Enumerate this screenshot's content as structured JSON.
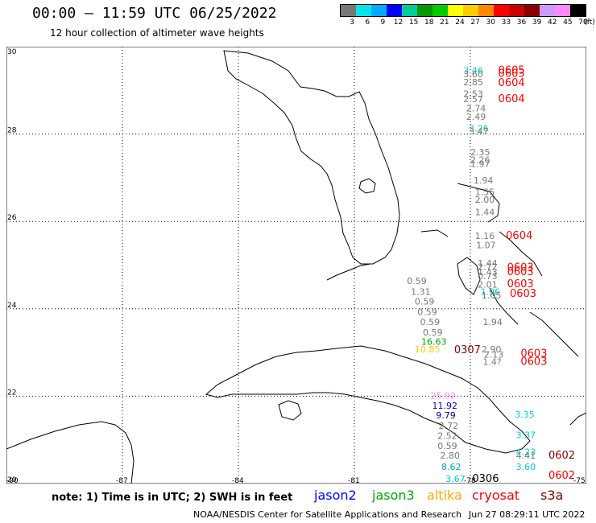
{
  "header": {
    "title": "00:00 – 11:59 UTC 06/25/2022",
    "subtitle": "12 hour collection of altimeter wave heights"
  },
  "scale": {
    "unit": "(ft)",
    "ticks": [
      "3",
      "6",
      "9",
      "12",
      "15",
      "18",
      "21",
      "24",
      "27",
      "30",
      "33",
      "36",
      "39",
      "42",
      "45",
      "70"
    ],
    "colors": [
      "#777777",
      "#00e5e5",
      "#00aaff",
      "#0000ff",
      "#00cc99",
      "#009900",
      "#00cc00",
      "#ffff00",
      "#ffcc00",
      "#ff8800",
      "#ff0000",
      "#cc0000",
      "#880000",
      "#cc99ff",
      "#ff88ff",
      "#000000"
    ]
  },
  "map": {
    "lon_range": [
      -90,
      -75
    ],
    "lat_range": [
      20,
      30
    ],
    "lon_ticks": [
      "-90",
      "-87",
      "-84",
      "-81",
      "-78",
      "-75"
    ],
    "lat_ticks": [
      "30",
      "28",
      "26",
      "24",
      "22",
      "20"
    ],
    "observations": [
      {
        "text": "3.46",
        "lon": -78.18,
        "lat": 29.38,
        "color": "#00cccc",
        "big": false
      },
      {
        "text": "3.60",
        "lon": -78.18,
        "lat": 29.3,
        "color": "#777777",
        "big": false
      },
      {
        "text": "0605",
        "lon": -77.28,
        "lat": 29.38,
        "color": "#ff0000",
        "big": true
      },
      {
        "text": "0603",
        "lon": -77.28,
        "lat": 29.31,
        "color": "#ff0000",
        "big": true
      },
      {
        "text": "2.85",
        "lon": -78.18,
        "lat": 29.12,
        "color": "#777777",
        "big": false
      },
      {
        "text": "0604",
        "lon": -77.28,
        "lat": 29.1,
        "color": "#ff0000",
        "big": true
      },
      {
        "text": "2.53",
        "lon": -78.18,
        "lat": 28.85,
        "color": "#777777",
        "big": false
      },
      {
        "text": "2.57",
        "lon": -78.18,
        "lat": 28.73,
        "color": "#777777",
        "big": false
      },
      {
        "text": "0604",
        "lon": -77.28,
        "lat": 28.73,
        "color": "#ff0000",
        "big": true
      },
      {
        "text": "2.74",
        "lon": -78.11,
        "lat": 28.52,
        "color": "#777777",
        "big": false
      },
      {
        "text": "2.49",
        "lon": -78.11,
        "lat": 28.32,
        "color": "#777777",
        "big": false
      },
      {
        "text": "3.26",
        "lon": -78.04,
        "lat": 28.06,
        "color": "#00cccc",
        "big": false
      },
      {
        "text": "3.47",
        "lon": -78.04,
        "lat": 27.99,
        "color": "#777777",
        "big": false
      },
      {
        "text": "2.35",
        "lon": -78.0,
        "lat": 27.51,
        "color": "#777777",
        "big": false
      },
      {
        "text": "2.26",
        "lon": -78.0,
        "lat": 27.34,
        "color": "#777777",
        "big": false
      },
      {
        "text": "1.97",
        "lon": -78.0,
        "lat": 27.25,
        "color": "#777777",
        "big": false
      },
      {
        "text": "1.94",
        "lon": -77.92,
        "lat": 26.87,
        "color": "#777777",
        "big": false
      },
      {
        "text": "1.55",
        "lon": -77.88,
        "lat": 26.6,
        "color": "#777777",
        "big": false
      },
      {
        "text": "2.00",
        "lon": -77.88,
        "lat": 26.43,
        "color": "#777777",
        "big": false
      },
      {
        "text": "1.44",
        "lon": -77.88,
        "lat": 26.14,
        "color": "#777777",
        "big": false
      },
      {
        "text": "1.16",
        "lon": -77.88,
        "lat": 25.6,
        "color": "#777777",
        "big": false
      },
      {
        "text": "0604",
        "lon": -77.08,
        "lat": 25.6,
        "color": "#ff0000",
        "big": true
      },
      {
        "text": "1.07",
        "lon": -77.85,
        "lat": 25.39,
        "color": "#777777",
        "big": false
      },
      {
        "text": "1.44",
        "lon": -77.81,
        "lat": 24.97,
        "color": "#777777",
        "big": false
      },
      {
        "text": "2.72",
        "lon": -77.81,
        "lat": 24.89,
        "color": "#777777",
        "big": false
      },
      {
        "text": "0603",
        "lon": -77.05,
        "lat": 24.87,
        "color": "#ff0000",
        "big": true
      },
      {
        "text": "1.43",
        "lon": -77.81,
        "lat": 24.77,
        "color": "#777777",
        "big": false
      },
      {
        "text": "0603",
        "lon": -77.05,
        "lat": 24.77,
        "color": "#ff0000",
        "big": true
      },
      {
        "text": "0.73",
        "lon": -77.81,
        "lat": 24.68,
        "color": "#777777",
        "big": false
      },
      {
        "text": "0.59",
        "lon": -79.64,
        "lat": 24.57,
        "color": "#777777",
        "big": false
      },
      {
        "text": "2.01",
        "lon": -77.81,
        "lat": 24.48,
        "color": "#777777",
        "big": false
      },
      {
        "text": "0603",
        "lon": -77.05,
        "lat": 24.49,
        "color": "#ff0000",
        "big": true
      },
      {
        "text": "1.31",
        "lon": -79.54,
        "lat": 24.32,
        "color": "#777777",
        "big": false
      },
      {
        "text": "1.96",
        "lon": -77.74,
        "lat": 24.32,
        "color": "#00cccc",
        "big": false
      },
      {
        "text": "0603",
        "lon": -76.98,
        "lat": 24.27,
        "color": "#ff0000",
        "big": true
      },
      {
        "text": "1.05",
        "lon": -77.71,
        "lat": 24.24,
        "color": "#777777",
        "big": false
      },
      {
        "text": "0.59",
        "lon": -79.44,
        "lat": 24.1,
        "color": "#777777",
        "big": false
      },
      {
        "text": "0.59",
        "lon": -79.37,
        "lat": 23.86,
        "color": "#777777",
        "big": false
      },
      {
        "text": "0.59",
        "lon": -79.3,
        "lat": 23.63,
        "color": "#777777",
        "big": false
      },
      {
        "text": "1.94",
        "lon": -77.68,
        "lat": 23.63,
        "color": "#777777",
        "big": false
      },
      {
        "text": "0.59",
        "lon": -79.23,
        "lat": 23.39,
        "color": "#777777",
        "big": false
      },
      {
        "text": "16.63",
        "lon": -79.27,
        "lat": 23.18,
        "color": "#00aa00",
        "big": false
      },
      {
        "text": "2.90",
        "lon": -77.71,
        "lat": 23.0,
        "color": "#777777",
        "big": false
      },
      {
        "text": "10.85",
        "lon": -79.44,
        "lat": 23.0,
        "color": "#ffcc00",
        "big": false
      },
      {
        "text": "0307",
        "lon": -78.42,
        "lat": 22.98,
        "color": "#880000",
        "big": true
      },
      {
        "text": "2.13",
        "lon": -77.65,
        "lat": 22.88,
        "color": "#777777",
        "big": false
      },
      {
        "text": "0603",
        "lon": -76.7,
        "lat": 22.9,
        "color": "#ff0000",
        "big": true
      },
      {
        "text": "1.4?",
        "lon": -77.68,
        "lat": 22.72,
        "color": "#777777",
        "big": false
      },
      {
        "text": "0603",
        "lon": -76.7,
        "lat": 22.72,
        "color": "#ff0000",
        "big": true
      },
      {
        "text": "25.92",
        "lon": -79.03,
        "lat": 21.94,
        "color": "#ff88ff",
        "big": false
      },
      {
        "text": "11.92",
        "lon": -78.99,
        "lat": 21.71,
        "color": "#0000aa",
        "big": false
      },
      {
        "text": "3.35",
        "lon": -76.85,
        "lat": 21.51,
        "color": "#00cccc",
        "big": false
      },
      {
        "text": "9.79",
        "lon": -78.89,
        "lat": 21.49,
        "color": "#0000aa",
        "big": false
      },
      {
        "text": "2.72",
        "lon": -78.82,
        "lat": 21.25,
        "color": "#777777",
        "big": false
      },
      {
        "text": "2.52",
        "lon": -78.85,
        "lat": 21.02,
        "color": "#777777",
        "big": false
      },
      {
        "text": "3.37",
        "lon": -76.82,
        "lat": 21.04,
        "color": "#00cccc",
        "big": false
      },
      {
        "text": "0.59",
        "lon": -78.85,
        "lat": 20.79,
        "color": "#777777",
        "big": false
      },
      {
        "text": "4.23",
        "lon": -76.82,
        "lat": 20.65,
        "color": "#00cccc",
        "big": false
      },
      {
        "text": "4.41",
        "lon": -76.82,
        "lat": 20.57,
        "color": "#777777",
        "big": false
      },
      {
        "text": "2.80",
        "lon": -78.78,
        "lat": 20.57,
        "color": "#777777",
        "big": false
      },
      {
        "text": "0602",
        "lon": -75.98,
        "lat": 20.57,
        "color": "#880000",
        "big": true
      },
      {
        "text": "8.62",
        "lon": -78.75,
        "lat": 20.31,
        "color": "#00aaaa",
        "big": false
      },
      {
        "text": "3.60",
        "lon": -76.82,
        "lat": 20.31,
        "color": "#00cccc",
        "big": false
      },
      {
        "text": "3.67",
        "lon": -78.64,
        "lat": 20.04,
        "color": "#00cccc",
        "big": false
      },
      {
        "text": "0306",
        "lon": -77.95,
        "lat": 20.04,
        "color": "#000000",
        "big": true
      },
      {
        "text": "0602",
        "lon": -75.98,
        "lat": 20.11,
        "color": "#ff0000",
        "big": true
      }
    ]
  },
  "footer": {
    "note": "note: 1) Time is in UTC; 2) SWH is in feet",
    "legend": [
      {
        "name": "jason2",
        "color": "#0000ff"
      },
      {
        "name": "jason3",
        "color": "#00aa00"
      },
      {
        "name": "altika",
        "color": "#ffaa00"
      },
      {
        "name": "cryosat",
        "color": "#ff0000"
      },
      {
        "name": "s3a",
        "color": "#880000"
      }
    ],
    "credit": "NOAA/NESDIS Center for Satellite Applications and Research",
    "timestamp": "Jun 27 08:29:11 UTC 2022"
  }
}
